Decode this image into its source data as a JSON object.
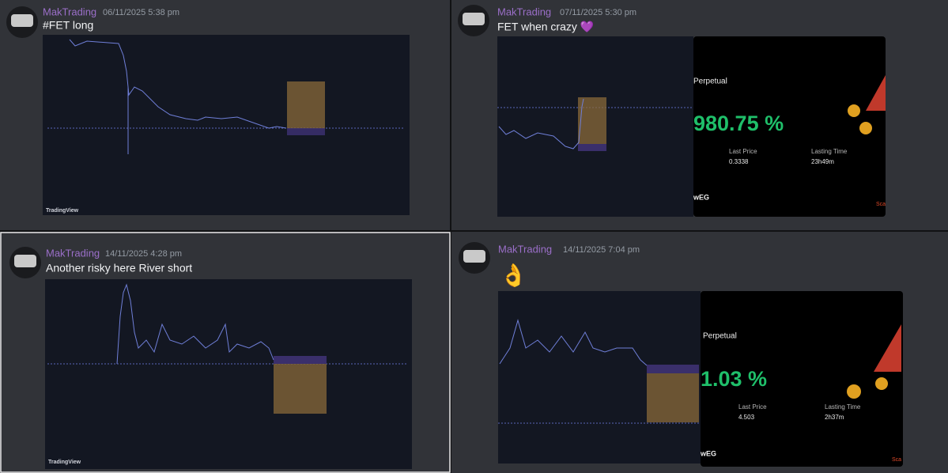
{
  "messages": [
    {
      "author": "MakTrading",
      "timestamp": "06/11/2025 5:38 pm",
      "content": "#FET long",
      "attachment": {
        "watermark": "TradingView"
      }
    },
    {
      "author": "MakTrading",
      "timestamp": "07/11/2025 5:30 pm",
      "content": "FET when crazy 💜",
      "card": {
        "headline": "Perpetual",
        "roi": "980.75 %",
        "last_price_label": "Last Price",
        "last_price": "0.3338",
        "lasting_time_label": "Lasting Time",
        "lasting_time": "23h49m",
        "footer": "wEG",
        "scan": "Sca"
      }
    },
    {
      "author": "MakTrading",
      "timestamp": "14/11/2025 4:28 pm",
      "content": "Another risky here River short",
      "attachment": {
        "watermark": "TradingView"
      }
    },
    {
      "author": "MakTrading",
      "timestamp": "14/11/2025 7:04 pm",
      "content": "👌",
      "card": {
        "headline": "Perpetual",
        "roi": "1.03 %",
        "last_price_label": "Last Price",
        "last_price": "4.503",
        "lasting_time_label": "Lasting Time",
        "lasting_time": "2h37m",
        "footer": "wEG",
        "scan": "Sca"
      }
    }
  ]
}
